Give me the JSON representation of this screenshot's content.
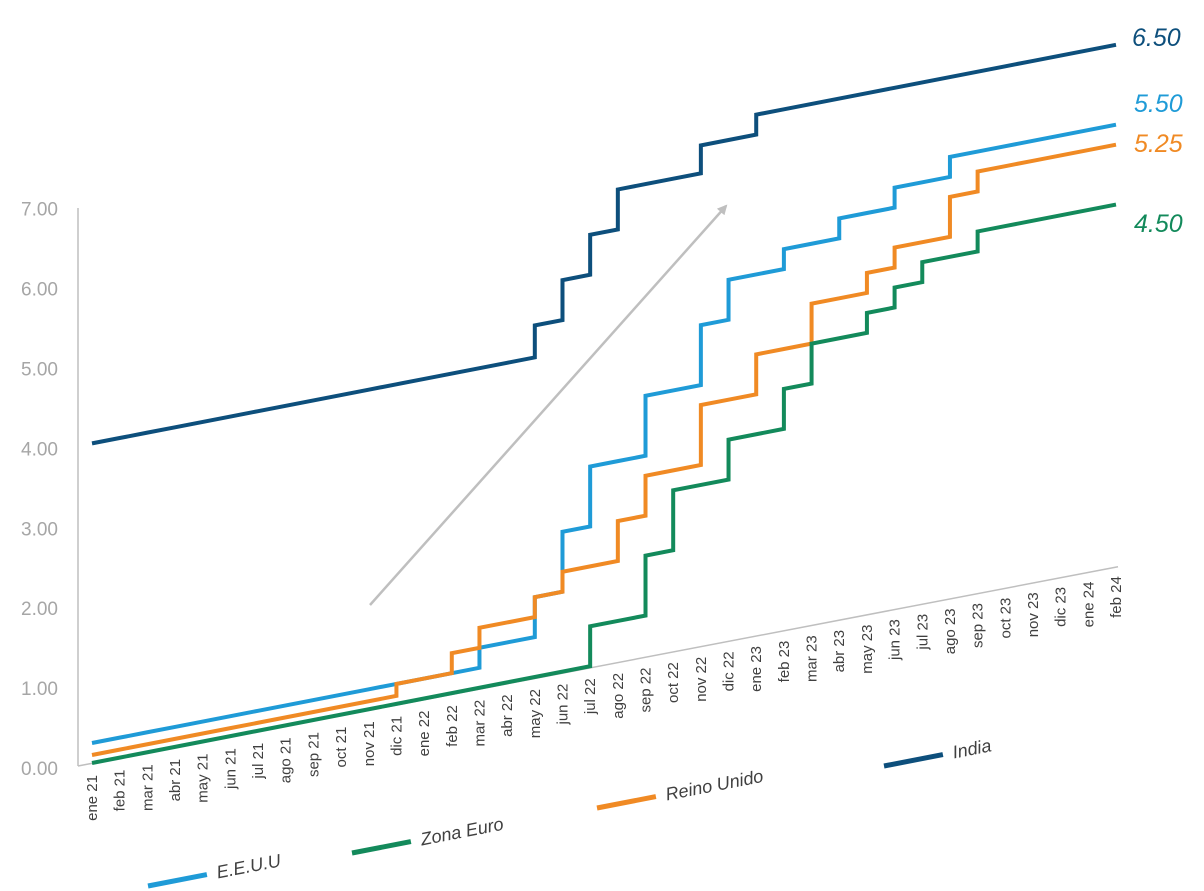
{
  "chart_data": {
    "type": "line",
    "title": "",
    "xlabel": "",
    "ylabel": "",
    "ylim": [
      0,
      7
    ],
    "yticks": [
      "0.00",
      "1.00",
      "2.00",
      "3.00",
      "4.00",
      "5.00",
      "6.00",
      "7.00"
    ],
    "grid": false,
    "legend_placement": "bottom",
    "categories": [
      "ene 21",
      "feb 21",
      "mar 21",
      "abr 21",
      "may 21",
      "jun 21",
      "jul 21",
      "ago 21",
      "sep 21",
      "oct 21",
      "nov 21",
      "dic 21",
      "ene 22",
      "feb 22",
      "mar 22",
      "abr 22",
      "may 22",
      "jun 22",
      "jul 22",
      "ago 22",
      "sep 22",
      "oct 22",
      "nov 22",
      "dic 22",
      "ene 23",
      "feb 23",
      "mar 23",
      "abr 23",
      "may 23",
      "jun 23",
      "jul 23",
      "ago 23",
      "sep 23",
      "oct 23",
      "nov 23",
      "dic 23",
      "ene 24",
      "feb 24"
    ],
    "series": [
      {
        "name": "India",
        "color": "#0d4f7c",
        "end_label": "6.50",
        "values": [
          4.0,
          4.0,
          4.0,
          4.0,
          4.0,
          4.0,
          4.0,
          4.0,
          4.0,
          4.0,
          4.0,
          4.0,
          4.0,
          4.0,
          4.0,
          4.0,
          4.4,
          4.9,
          5.4,
          5.9,
          5.9,
          5.9,
          6.25,
          6.25,
          6.5,
          6.5,
          6.5,
          6.5,
          6.5,
          6.5,
          6.5,
          6.5,
          6.5,
          6.5,
          6.5,
          6.5,
          6.5,
          6.5
        ]
      },
      {
        "name": "E.E.U.U",
        "color": "#1f9bd7",
        "end_label": "5.50",
        "values": [
          0.25,
          0.25,
          0.25,
          0.25,
          0.25,
          0.25,
          0.25,
          0.25,
          0.25,
          0.25,
          0.25,
          0.25,
          0.25,
          0.25,
          0.5,
          0.5,
          1.0,
          1.75,
          2.5,
          2.5,
          3.25,
          3.25,
          4.0,
          4.5,
          4.5,
          4.75,
          4.75,
          5.0,
          5.0,
          5.25,
          5.25,
          5.5,
          5.5,
          5.5,
          5.5,
          5.5,
          5.5,
          5.5
        ]
      },
      {
        "name": "Reino Unido",
        "color": "#f08a24",
        "end_label": "5.25",
        "values": [
          0.1,
          0.1,
          0.1,
          0.1,
          0.1,
          0.1,
          0.1,
          0.1,
          0.1,
          0.1,
          0.1,
          0.25,
          0.25,
          0.5,
          0.75,
          0.75,
          1.0,
          1.25,
          1.25,
          1.75,
          2.25,
          2.25,
          3.0,
          3.0,
          3.5,
          3.5,
          4.0,
          4.0,
          4.25,
          4.5,
          4.5,
          5.0,
          5.25,
          5.25,
          5.25,
          5.25,
          5.25,
          5.25
        ]
      },
      {
        "name": "Zona Euro",
        "color": "#138a5b",
        "end_label": "4.50",
        "values": [
          0.0,
          0.0,
          0.0,
          0.0,
          0.0,
          0.0,
          0.0,
          0.0,
          0.0,
          0.0,
          0.0,
          0.0,
          0.0,
          0.0,
          0.0,
          0.0,
          0.0,
          0.0,
          0.5,
          0.5,
          1.25,
          2.0,
          2.0,
          2.5,
          2.5,
          3.0,
          3.5,
          3.5,
          3.75,
          4.0,
          4.25,
          4.25,
          4.5,
          4.5,
          4.5,
          4.5,
          4.5,
          4.5
        ]
      }
    ]
  }
}
